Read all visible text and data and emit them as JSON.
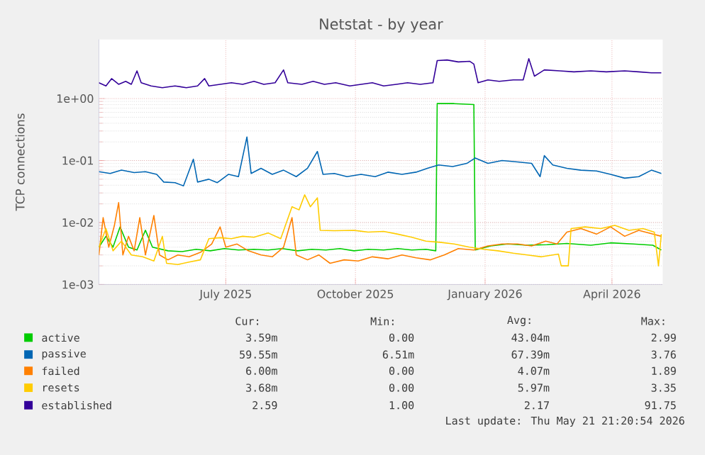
{
  "chart_data": {
    "type": "line",
    "title": "Netstat - by year",
    "ylabel": "TCP connections",
    "log": true,
    "grid": true,
    "legend": "bottom",
    "xlim": [
      "2025-04-17",
      "2026-05-22"
    ],
    "ylim": [
      0.001,
      9
    ],
    "xticks": [
      {
        "value": "2025-07-16",
        "label": "July 2025"
      },
      {
        "value": "2025-10-16",
        "label": "October 2025"
      },
      {
        "value": "2026-01-16",
        "label": "January 2026"
      },
      {
        "value": "2026-04-16",
        "label": "April 2026"
      }
    ],
    "yticks": [
      {
        "value": 0.001,
        "label": "1e-03"
      },
      {
        "value": 0.01,
        "label": "1e-02"
      },
      {
        "value": 0.1,
        "label": "1e-01"
      },
      {
        "value": 1,
        "label": "1e+00"
      }
    ],
    "series": [
      {
        "name": "active",
        "color": "#00cc00",
        "x": [
          "2025-04-17",
          "2025-04-22",
          "2025-04-27",
          "2025-05-02",
          "2025-05-08",
          "2025-05-14",
          "2025-05-20",
          "2025-05-25",
          "2025-06-05",
          "2025-06-15",
          "2025-06-25",
          "2025-07-05",
          "2025-07-15",
          "2025-07-25",
          "2025-08-05",
          "2025-08-15",
          "2025-08-25",
          "2025-09-05",
          "2025-09-15",
          "2025-09-25",
          "2025-10-05",
          "2025-10-15",
          "2025-10-25",
          "2025-11-05",
          "2025-11-15",
          "2025-11-25",
          "2025-12-05",
          "2025-12-12",
          "2025-12-13",
          "2025-12-25",
          "2026-01-08",
          "2026-01-09",
          "2026-01-20",
          "2026-02-01",
          "2026-02-15",
          "2026-03-01",
          "2026-03-15",
          "2026-04-01",
          "2026-04-15",
          "2026-05-01",
          "2026-05-15",
          "2026-05-21"
        ],
        "values": [
          0.004,
          0.006,
          0.004,
          0.0085,
          0.004,
          0.0036,
          0.0075,
          0.004,
          0.0035,
          0.0034,
          0.0037,
          0.0035,
          0.0038,
          0.0036,
          0.0037,
          0.0036,
          0.0038,
          0.0035,
          0.0037,
          0.0036,
          0.0038,
          0.0035,
          0.0037,
          0.0036,
          0.0038,
          0.0036,
          0.0037,
          0.0035,
          0.83,
          0.83,
          0.8,
          0.0036,
          0.0042,
          0.0045,
          0.0043,
          0.0044,
          0.0046,
          0.0043,
          0.0047,
          0.0045,
          0.0043,
          0.0036
        ]
      },
      {
        "name": "passive",
        "color": "#0066b3",
        "x": [
          "2025-04-17",
          "2025-04-25",
          "2025-05-03",
          "2025-05-12",
          "2025-05-20",
          "2025-05-28",
          "2025-06-02",
          "2025-06-10",
          "2025-06-16",
          "2025-06-23",
          "2025-06-26",
          "2025-07-04",
          "2025-07-10",
          "2025-07-18",
          "2025-07-25",
          "2025-07-31",
          "2025-08-03",
          "2025-08-10",
          "2025-08-18",
          "2025-08-26",
          "2025-09-04",
          "2025-09-12",
          "2025-09-19",
          "2025-09-23",
          "2025-10-01",
          "2025-10-10",
          "2025-10-20",
          "2025-10-30",
          "2025-11-08",
          "2025-11-18",
          "2025-11-28",
          "2025-12-06",
          "2025-12-14",
          "2025-12-24",
          "2026-01-03",
          "2026-01-09",
          "2026-01-18",
          "2026-01-28",
          "2026-02-08",
          "2026-02-18",
          "2026-02-24",
          "2026-02-27",
          "2026-03-05",
          "2026-03-15",
          "2026-03-25",
          "2026-04-05",
          "2026-04-15",
          "2026-04-25",
          "2026-05-05",
          "2026-05-14",
          "2026-05-21"
        ],
        "values": [
          0.066,
          0.062,
          0.07,
          0.064,
          0.066,
          0.06,
          0.045,
          0.044,
          0.039,
          0.105,
          0.045,
          0.05,
          0.044,
          0.06,
          0.055,
          0.24,
          0.062,
          0.075,
          0.06,
          0.07,
          0.055,
          0.075,
          0.14,
          0.06,
          0.062,
          0.055,
          0.06,
          0.055,
          0.065,
          0.06,
          0.065,
          0.075,
          0.085,
          0.08,
          0.09,
          0.11,
          0.09,
          0.1,
          0.095,
          0.09,
          0.055,
          0.12,
          0.085,
          0.075,
          0.07,
          0.068,
          0.06,
          0.052,
          0.055,
          0.07,
          0.062
        ]
      },
      {
        "name": "failed",
        "color": "#ff8000",
        "x": [
          "2025-04-17",
          "2025-04-20",
          "2025-04-24",
          "2025-04-28",
          "2025-05-01",
          "2025-05-04",
          "2025-05-08",
          "2025-05-12",
          "2025-05-16",
          "2025-05-20",
          "2025-05-26",
          "2025-05-30",
          "2025-06-05",
          "2025-06-12",
          "2025-06-20",
          "2025-06-28",
          "2025-07-06",
          "2025-07-12",
          "2025-07-16",
          "2025-07-24",
          "2025-08-01",
          "2025-08-10",
          "2025-08-18",
          "2025-08-26",
          "2025-09-01",
          "2025-09-04",
          "2025-09-12",
          "2025-09-20",
          "2025-09-28",
          "2025-10-08",
          "2025-10-18",
          "2025-10-28",
          "2025-11-08",
          "2025-11-18",
          "2025-11-28",
          "2025-12-08",
          "2025-12-18",
          "2025-12-28",
          "2026-01-08",
          "2026-01-18",
          "2026-01-28",
          "2026-02-08",
          "2026-02-18",
          "2026-02-28",
          "2026-03-08",
          "2026-03-15",
          "2026-03-25",
          "2026-04-05",
          "2026-04-15",
          "2026-04-25",
          "2026-05-05",
          "2026-05-15",
          "2026-05-21"
        ],
        "values": [
          0.003,
          0.012,
          0.004,
          0.009,
          0.021,
          0.003,
          0.006,
          0.0035,
          0.012,
          0.003,
          0.013,
          0.003,
          0.0025,
          0.003,
          0.0028,
          0.0033,
          0.0045,
          0.0085,
          0.004,
          0.0045,
          0.0035,
          0.003,
          0.0028,
          0.004,
          0.012,
          0.003,
          0.0025,
          0.003,
          0.0022,
          0.0025,
          0.0024,
          0.0028,
          0.0026,
          0.003,
          0.0027,
          0.0025,
          0.003,
          0.0038,
          0.0036,
          0.0042,
          0.0045,
          0.0045,
          0.0042,
          0.005,
          0.0045,
          0.007,
          0.008,
          0.0065,
          0.0085,
          0.006,
          0.0075,
          0.0065,
          0.006
        ]
      },
      {
        "name": "resets",
        "color": "#ffcc00",
        "x": [
          "2025-04-17",
          "2025-04-22",
          "2025-04-27",
          "2025-05-03",
          "2025-05-10",
          "2025-05-18",
          "2025-05-26",
          "2025-06-01",
          "2025-06-04",
          "2025-06-12",
          "2025-06-20",
          "2025-06-28",
          "2025-07-04",
          "2025-07-12",
          "2025-07-20",
          "2025-07-28",
          "2025-08-05",
          "2025-08-15",
          "2025-08-24",
          "2025-09-01",
          "2025-09-06",
          "2025-09-10",
          "2025-09-14",
          "2025-09-19",
          "2025-09-21",
          "2025-10-01",
          "2025-10-15",
          "2025-10-25",
          "2025-11-05",
          "2025-11-15",
          "2025-11-25",
          "2025-12-05",
          "2025-12-15",
          "2025-12-25",
          "2026-01-05",
          "2026-01-15",
          "2026-01-25",
          "2026-02-05",
          "2026-02-15",
          "2026-02-25",
          "2026-03-09",
          "2026-03-11",
          "2026-03-16",
          "2026-03-18",
          "2026-03-28",
          "2026-04-08",
          "2026-04-18",
          "2026-04-28",
          "2026-05-08",
          "2026-05-16",
          "2026-05-19",
          "2026-05-21"
        ],
        "values": [
          0.004,
          0.008,
          0.0035,
          0.005,
          0.003,
          0.0028,
          0.0024,
          0.006,
          0.0022,
          0.0021,
          0.0023,
          0.0025,
          0.0055,
          0.0057,
          0.0055,
          0.006,
          0.0058,
          0.0068,
          0.0055,
          0.018,
          0.016,
          0.028,
          0.018,
          0.025,
          0.0075,
          0.0074,
          0.0075,
          0.007,
          0.0072,
          0.0065,
          0.0058,
          0.005,
          0.0048,
          0.0045,
          0.004,
          0.0037,
          0.0035,
          0.0032,
          0.003,
          0.0028,
          0.0031,
          0.002,
          0.002,
          0.008,
          0.0085,
          0.008,
          0.009,
          0.0075,
          0.008,
          0.007,
          0.002,
          0.0065
        ]
      },
      {
        "name": "established",
        "color": "#330099",
        "x": [
          "2025-04-17",
          "2025-04-22",
          "2025-04-26",
          "2025-05-01",
          "2025-05-06",
          "2025-05-10",
          "2025-05-14",
          "2025-05-17",
          "2025-05-24",
          "2025-06-01",
          "2025-06-10",
          "2025-06-18",
          "2025-06-26",
          "2025-07-01",
          "2025-07-04",
          "2025-07-12",
          "2025-07-20",
          "2025-07-28",
          "2025-08-05",
          "2025-08-12",
          "2025-08-20",
          "2025-08-26",
          "2025-08-29",
          "2025-09-08",
          "2025-09-16",
          "2025-09-24",
          "2025-10-02",
          "2025-10-12",
          "2025-10-20",
          "2025-10-28",
          "2025-11-05",
          "2025-11-14",
          "2025-11-22",
          "2025-12-01",
          "2025-12-10",
          "2025-12-13",
          "2025-12-20",
          "2025-12-28",
          "2026-01-05",
          "2026-01-08",
          "2026-01-11",
          "2026-01-18",
          "2026-01-26",
          "2026-02-05",
          "2026-02-12",
          "2026-02-16",
          "2026-02-20",
          "2026-02-27",
          "2026-03-10",
          "2026-03-20",
          "2026-04-01",
          "2026-04-12",
          "2026-04-25",
          "2026-05-05",
          "2026-05-14",
          "2026-05-21"
        ],
        "values": [
          1.8,
          1.6,
          2.1,
          1.7,
          1.9,
          1.7,
          2.8,
          1.8,
          1.6,
          1.5,
          1.6,
          1.5,
          1.6,
          2.1,
          1.6,
          1.7,
          1.8,
          1.7,
          1.9,
          1.7,
          1.8,
          2.9,
          1.8,
          1.7,
          1.9,
          1.7,
          1.8,
          1.6,
          1.7,
          1.8,
          1.6,
          1.7,
          1.8,
          1.7,
          1.8,
          4.1,
          4.2,
          3.9,
          4.0,
          3.6,
          1.8,
          2.0,
          1.9,
          2.0,
          2.0,
          4.4,
          2.3,
          2.9,
          2.8,
          2.7,
          2.8,
          2.7,
          2.8,
          2.7,
          2.6,
          2.6
        ]
      }
    ],
    "annotations": [
      "Cur:",
      "Min:",
      "Avg:",
      "Max:",
      "3.59m",
      "0.00",
      "43.04m",
      "2.99",
      "59.55m",
      "6.51m",
      "67.39m",
      "3.76",
      "6.00m",
      "0.00",
      "4.07m",
      "1.89",
      "3.68m",
      "0.00",
      "5.97m",
      "3.35",
      "2.59",
      "1.00",
      "2.17",
      "91.75",
      "Last update: Thu May 21 21:20:54 2026"
    ]
  }
}
